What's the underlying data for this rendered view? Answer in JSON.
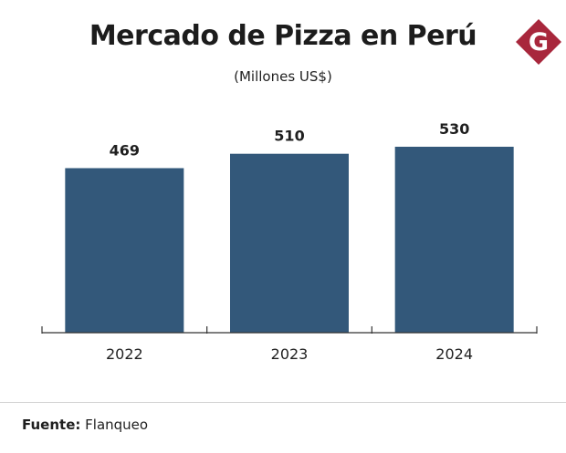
{
  "brand": {
    "logo_letter": "G",
    "logo_color": "#a8273c"
  },
  "chart_data": {
    "type": "bar",
    "title": "Mercado de Pizza en Perú",
    "subtitle": "(Millones US$)",
    "categories": [
      "2022",
      "2023",
      "2024"
    ],
    "values": [
      469,
      510,
      530
    ],
    "data_labels": [
      "469",
      "510",
      "530"
    ],
    "xlabel": "",
    "ylabel": "",
    "ylim": [
      0,
      530
    ],
    "bar_color": "#33587a",
    "grid": false
  },
  "footer": {
    "source_label": "Fuente:",
    "source_value": "Flanqueo"
  }
}
